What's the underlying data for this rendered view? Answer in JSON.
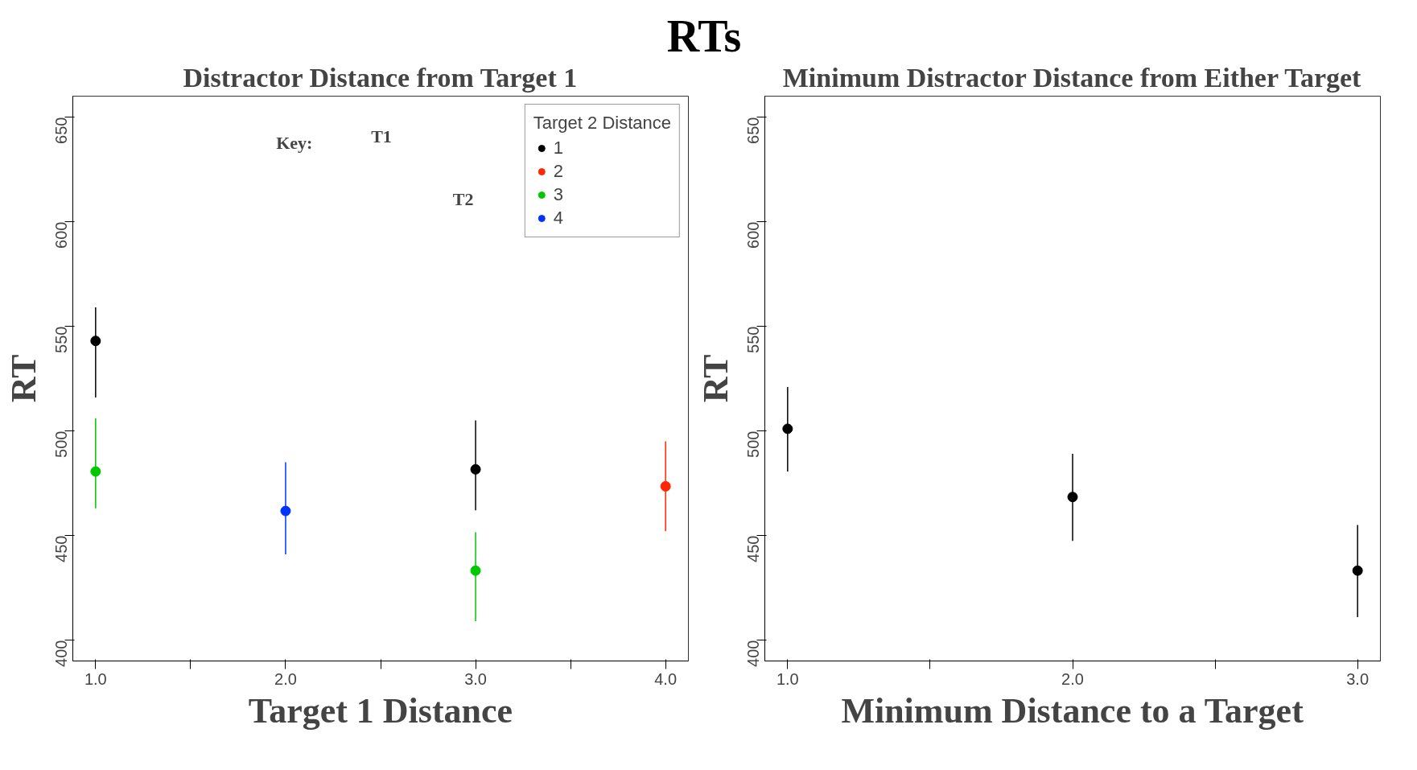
{
  "chart_data": [
    {
      "type": "scatter",
      "title": "RTs",
      "subtitle": "Distractor Distance from Target 1",
      "xlabel": "Target 1 Distance",
      "ylabel": "RT",
      "legend_title": "Target 2 Distance",
      "legend": "top right",
      "marker": "circle",
      "grid": false,
      "xlim": [
        0.88,
        4.12
      ],
      "xticks": [
        {
          "value": 1,
          "label": "1.0"
        },
        {
          "value": 1.5,
          "label": null
        },
        {
          "value": 2,
          "label": "2.0"
        },
        {
          "value": 2.5,
          "label": null
        },
        {
          "value": 3,
          "label": "3.0"
        },
        {
          "value": 3.5,
          "label": null
        },
        {
          "value": 4,
          "label": "4.0"
        }
      ],
      "ylim": [
        390,
        660
      ],
      "yticks": [
        400,
        450,
        500,
        550,
        600,
        650
      ],
      "annotations": [
        "Key:",
        "T1",
        "T2"
      ],
      "series": [
        {
          "name": "1",
          "color": "#000000",
          "x": [
            1,
            3
          ],
          "values": [
            543,
            481.6
          ],
          "errors": [
            [
              516,
              559
            ],
            [
              462,
              505
            ]
          ]
        },
        {
          "name": "2",
          "color": "#ff2600",
          "x": [
            4
          ],
          "values": [
            473.5
          ],
          "errors": [
            [
              452,
              495
            ]
          ]
        },
        {
          "name": "3",
          "color": "#00c800",
          "x": [
            1,
            3
          ],
          "values": [
            480.6,
            433.2
          ],
          "errors": [
            [
              463,
              506
            ],
            [
              409,
              451.5
            ]
          ]
        },
        {
          "name": "4",
          "color": "#0033ff",
          "x": [
            2
          ],
          "values": [
            461.7
          ],
          "errors": [
            [
              441,
              485
            ]
          ]
        }
      ]
    },
    {
      "type": "scatter",
      "subtitle": "Minimum Distractor Distance from Either Target",
      "xlabel": "Minimum Distance to a Target",
      "ylabel": "RT",
      "marker": "circle",
      "grid": false,
      "xlim": [
        0.92,
        3.08
      ],
      "xticks": [
        {
          "value": 1,
          "label": "1.0"
        },
        {
          "value": 1.5,
          "label": null
        },
        {
          "value": 2,
          "label": "2.0"
        },
        {
          "value": 2.5,
          "label": null
        },
        {
          "value": 3,
          "label": "3.0"
        }
      ],
      "ylim": [
        390,
        660
      ],
      "yticks": [
        400,
        450,
        500,
        550,
        600,
        650
      ],
      "series": [
        {
          "color": "#000000",
          "x": [
            1,
            2,
            3
          ],
          "values": [
            501,
            468.4,
            433.2
          ],
          "errors": [
            [
              480.6,
              521
            ],
            [
              447.4,
              489
            ],
            [
              411,
              455
            ]
          ]
        }
      ]
    }
  ]
}
